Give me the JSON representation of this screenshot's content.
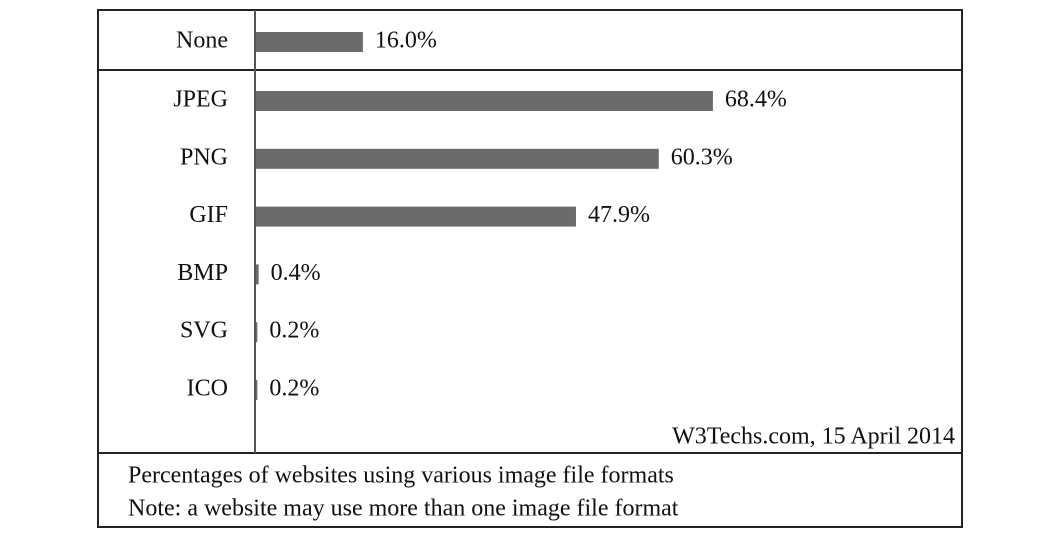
{
  "chart_data": {
    "type": "bar",
    "orientation": "horizontal",
    "categories": [
      "None",
      "JPEG",
      "PNG",
      "GIF",
      "BMP",
      "SVG",
      "ICO"
    ],
    "values": [
      16.0,
      68.4,
      60.3,
      47.9,
      0.4,
      0.2,
      0.2
    ],
    "value_labels": [
      "16.0%",
      "68.4%",
      "60.3%",
      "47.9%",
      "0.4%",
      "0.2%",
      "0.2%"
    ],
    "color": "#6b6b6b",
    "xlim": [
      0,
      100
    ],
    "source": "W3Techs.com, 15 April 2014",
    "notes": [
      "Percentages of websites using various image file formats",
      "Note: a website may use more than one image file format"
    ]
  }
}
